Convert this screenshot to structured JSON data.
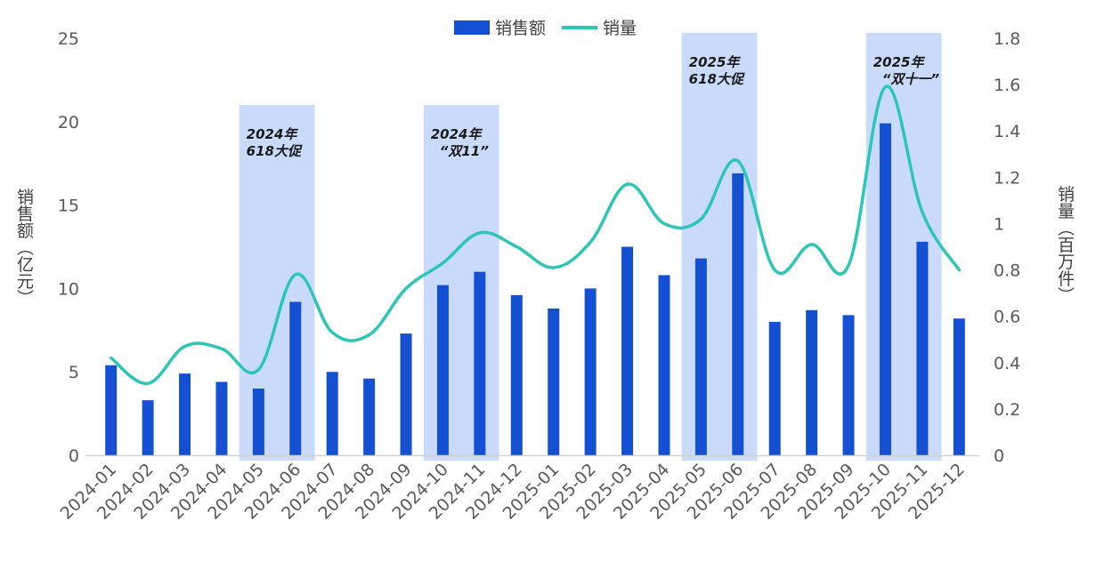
{
  "chart_data": {
    "type": "bar",
    "categories": [
      "2024-01",
      "2024-02",
      "2024-03",
      "2024-04",
      "2024-05",
      "2024-06",
      "2024-07",
      "2024-08",
      "2024-09",
      "2024-10",
      "2024-11",
      "2024-12",
      "2025-01",
      "2025-02",
      "2025-03",
      "2025-04",
      "2025-05",
      "2025-06",
      "2025-07",
      "2025-08",
      "2025-09",
      "2025-10",
      "2025-11",
      "2025-12"
    ],
    "series": [
      {
        "name": "销售额",
        "type": "bar",
        "axis": "left",
        "color": "#1451d2",
        "values": [
          5.4,
          3.3,
          4.9,
          4.4,
          4.0,
          9.2,
          5.0,
          4.6,
          7.3,
          10.2,
          11.0,
          9.6,
          8.8,
          10.0,
          12.5,
          10.8,
          11.8,
          16.9,
          8.0,
          8.7,
          8.4,
          19.9,
          12.8,
          8.2
        ]
      },
      {
        "name": "销量",
        "type": "line",
        "axis": "right",
        "color": "#2bc6b6",
        "values": [
          0.42,
          0.31,
          0.47,
          0.46,
          0.37,
          0.78,
          0.53,
          0.52,
          0.72,
          0.83,
          0.96,
          0.9,
          0.81,
          0.92,
          1.17,
          1.0,
          1.02,
          1.27,
          0.8,
          0.91,
          0.82,
          1.59,
          1.05,
          0.8
        ]
      }
    ],
    "y_left": {
      "label": "销售额（亿元）",
      "min": 0,
      "max": 25,
      "ticks": [
        "0",
        "5",
        "10",
        "15",
        "20",
        "25"
      ]
    },
    "y_right": {
      "label": "销量（百万件）",
      "min": 0,
      "max": 1.8,
      "ticks": [
        "0",
        "0.2",
        "0.4",
        "0.6",
        "0.8",
        "1",
        "1.2",
        "1.4",
        "1.6",
        "1.8"
      ]
    },
    "legend": {
      "position": "top-center",
      "items": [
        "销售额",
        "销量"
      ]
    },
    "highlight_color": "#c9dafa",
    "annotations": [
      {
        "from": "2024-05",
        "to": "2024-06",
        "lines": [
          "2024年",
          "618大促"
        ]
      },
      {
        "from": "2024-10",
        "to": "2024-11",
        "lines": [
          "2024年",
          "“双11”"
        ]
      },
      {
        "from": "2025-05",
        "to": "2025-06",
        "lines": [
          "2025年",
          "618大促"
        ]
      },
      {
        "from": "2025-10",
        "to": "2025-11",
        "lines": [
          "2025年",
          "“双十一”"
        ]
      }
    ]
  }
}
